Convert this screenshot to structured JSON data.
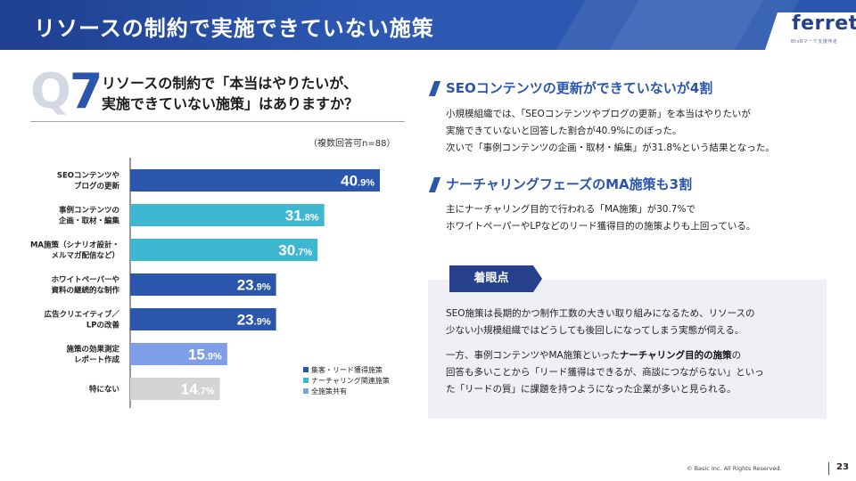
{
  "header": {
    "title": "リソースの制約で実施できていない施策",
    "logo": "ferret",
    "logo_sub": "BtoBマーケ支援伴走"
  },
  "question": {
    "q_letter": "Q",
    "q_number": "7",
    "line1": "リソースの制約で「本当はやりたいが、",
    "line2": "実施できていない施策」はありますか？",
    "note": "（複数回答可n=88）"
  },
  "colors": {
    "brand": "#2a56ad",
    "dark_brand": "#27418f",
    "lead_acquisition": "#2a56ad",
    "nurturing": "#3eb7d1",
    "all_common": "#7e9fe7",
    "none": "#d4d4d4"
  },
  "chart_data": {
    "type": "bar",
    "orientation": "horizontal",
    "unit": "%",
    "xlim": [
      0,
      50
    ],
    "categories": [
      [
        "SEOコンテンツや",
        "ブログの更新"
      ],
      [
        "事例コンテンツの",
        "企画・取材・編集"
      ],
      [
        "MA施策（シナリオ設計・",
        "メルマガ配信など）"
      ],
      [
        "ホワイトペーパーや",
        "資料の継続的な制作"
      ],
      [
        "広告クリエイティブ／",
        "LPの改善"
      ],
      [
        "施策の効果測定",
        "レポート作成"
      ],
      [
        "特にない"
      ]
    ],
    "values": [
      40.9,
      31.8,
      30.7,
      23.9,
      23.9,
      15.9,
      14.7
    ],
    "value_labels": [
      {
        "int": "40",
        "dec": ".9%"
      },
      {
        "int": "31",
        "dec": ".8%"
      },
      {
        "int": "30",
        "dec": ".7%"
      },
      {
        "int": "23",
        "dec": ".9%"
      },
      {
        "int": "23",
        "dec": ".9%"
      },
      {
        "int": "15",
        "dec": ".9%"
      },
      {
        "int": "14",
        "dec": ".7%"
      }
    ],
    "bar_groups": [
      "lead_acquisition",
      "nurturing",
      "nurturing",
      "lead_acquisition",
      "lead_acquisition",
      "all_common",
      "none"
    ],
    "legend": [
      {
        "key": "lead_acquisition",
        "label": "集客・リード獲得施策"
      },
      {
        "key": "nurturing",
        "label": "ナーチャリング関連施策"
      },
      {
        "key": "all_common",
        "label": "全施策共有"
      }
    ],
    "legend_position": "bottom-right"
  },
  "sections": [
    {
      "title": "SEOコンテンツの更新ができていないが4割",
      "lines": [
        "小規模組織では、「SEOコンテンツやブログの更新」を本当はやりたいが",
        "実施できていないと回答した割合が40.9%にのぼった。",
        "次いで「事例コンテンツの企画・取材・編集」が31.8%という結果となった。"
      ]
    },
    {
      "title": "ナーチャリングフェーズのMA施策も3割",
      "lines": [
        "主にナーチャリング目的で行われる「MA施策」が30.7%で",
        "ホワイトペーパーやLPなどのリード獲得目的の施策よりも上回っている。"
      ]
    }
  ],
  "focus": {
    "tag": "着眼点",
    "p1_line1": "SEO施策は長期的かつ制作工数の大きい取り組みになるため、リソースの",
    "p1_line2": "少ない小規模組織ではどうしても後回しになってしまう実態が伺える。",
    "p2_line1_pre": "一方、事例コンテンツやMA施策といった",
    "p2_line1_bold": "ナーチャリング目的の施策",
    "p2_line1_post": "の",
    "p2_line2": "回答も多いことから「リード獲得はできるが、商談につながらない」といっ",
    "p2_line3": "た「リードの質」に課題を持つようになった企業が多いと見られる。"
  },
  "footer": {
    "copyright": "© Basic Inc. All Rights Reserved.",
    "page": "23"
  }
}
